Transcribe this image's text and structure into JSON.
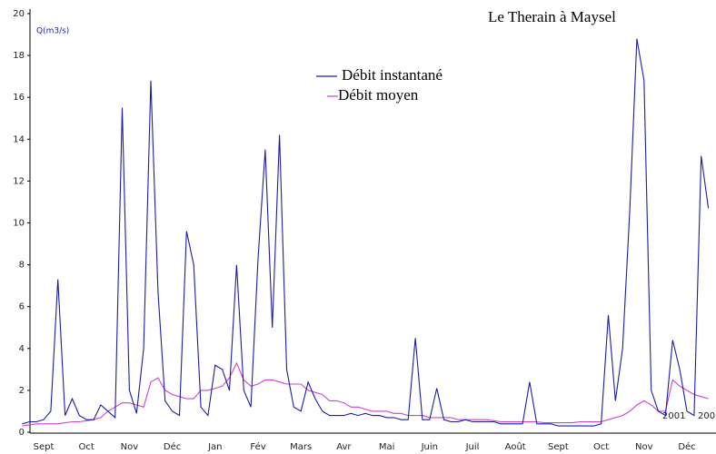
{
  "chart_data": {
    "type": "line",
    "title": "Le Therain à Maysel",
    "y_label": "Q(m3/s)",
    "categories": [
      null,
      null,
      null,
      "Sept",
      null,
      null,
      null,
      null,
      null,
      "Oct",
      null,
      null,
      null,
      null,
      null,
      "Nov",
      null,
      null,
      null,
      null,
      null,
      "Déc",
      null,
      null,
      null,
      null,
      null,
      "Jan",
      null,
      null,
      null,
      null,
      null,
      "Fév",
      null,
      null,
      null,
      null,
      null,
      "Mars",
      null,
      null,
      null,
      null,
      null,
      "Avr",
      null,
      null,
      null,
      null,
      null,
      "Mai",
      null,
      null,
      null,
      null,
      null,
      "Juin",
      null,
      null,
      null,
      null,
      null,
      "Juil",
      null,
      null,
      null,
      null,
      null,
      "Août",
      null,
      null,
      null,
      null,
      null,
      "Sept",
      null,
      null,
      null,
      null,
      null,
      "Oct",
      null,
      null,
      null,
      null,
      null,
      "Nov",
      null,
      null,
      null,
      null,
      null,
      "Déc",
      null,
      null,
      null
    ],
    "series": [
      {
        "name": "Débit instantané",
        "color": "#1c1ca8",
        "values": [
          0.4,
          0.5,
          0.5,
          0.6,
          1.0,
          7.3,
          0.8,
          1.6,
          0.8,
          0.6,
          0.6,
          1.3,
          1.0,
          0.7,
          15.5,
          2.0,
          0.9,
          4.0,
          16.8,
          6.7,
          1.5,
          1.0,
          0.8,
          9.6,
          8.0,
          1.2,
          0.8,
          3.2,
          3.0,
          2.0,
          8.0,
          2.0,
          1.2,
          8.3,
          13.5,
          5.0,
          14.2,
          3.0,
          1.2,
          1.0,
          2.4,
          1.6,
          1.0,
          0.8,
          0.8,
          0.8,
          0.9,
          0.8,
          0.9,
          0.8,
          0.8,
          0.7,
          0.7,
          0.6,
          0.6,
          4.5,
          0.6,
          0.6,
          2.1,
          0.6,
          0.5,
          0.5,
          0.6,
          0.5,
          0.5,
          0.5,
          0.5,
          0.4,
          0.4,
          0.4,
          0.4,
          2.4,
          0.4,
          0.4,
          0.4,
          0.3,
          0.3,
          0.3,
          0.3,
          0.3,
          0.3,
          0.4,
          5.6,
          1.5,
          4.0,
          10.6,
          18.8,
          16.8,
          2.0,
          1.0,
          0.8,
          4.4,
          3.0,
          1.0,
          0.8,
          13.2,
          10.7
        ]
      },
      {
        "name": "Débit moyen",
        "color": "#cc44cc",
        "values": [
          0.3,
          0.35,
          0.4,
          0.4,
          0.4,
          0.4,
          0.45,
          0.5,
          0.5,
          0.55,
          0.6,
          0.7,
          1.0,
          1.2,
          1.4,
          1.4,
          1.3,
          1.2,
          2.4,
          2.6,
          2.0,
          1.8,
          1.7,
          1.6,
          1.6,
          2.0,
          2.0,
          2.1,
          2.2,
          2.6,
          3.3,
          2.5,
          2.2,
          2.3,
          2.5,
          2.5,
          2.4,
          2.3,
          2.3,
          2.3,
          2.0,
          1.9,
          1.8,
          1.5,
          1.5,
          1.4,
          1.2,
          1.2,
          1.1,
          1.0,
          1.0,
          1.0,
          0.9,
          0.9,
          0.8,
          0.8,
          0.8,
          0.7,
          0.7,
          0.7,
          0.7,
          0.6,
          0.6,
          0.6,
          0.6,
          0.6,
          0.55,
          0.5,
          0.5,
          0.5,
          0.5,
          0.5,
          0.5,
          0.45,
          0.45,
          0.45,
          0.45,
          0.45,
          0.5,
          0.5,
          0.5,
          0.5,
          0.6,
          0.7,
          0.8,
          1.0,
          1.3,
          1.5,
          1.3,
          1.0,
          1.0,
          2.5,
          2.2,
          2.0,
          1.8,
          1.7,
          1.6
        ]
      }
    ],
    "ylim": [
      0,
      20
    ],
    "yticks": [
      0,
      2,
      4,
      6,
      8,
      10,
      12,
      14,
      16,
      18,
      20
    ],
    "annotations": [
      "2001",
      "200"
    ]
  }
}
